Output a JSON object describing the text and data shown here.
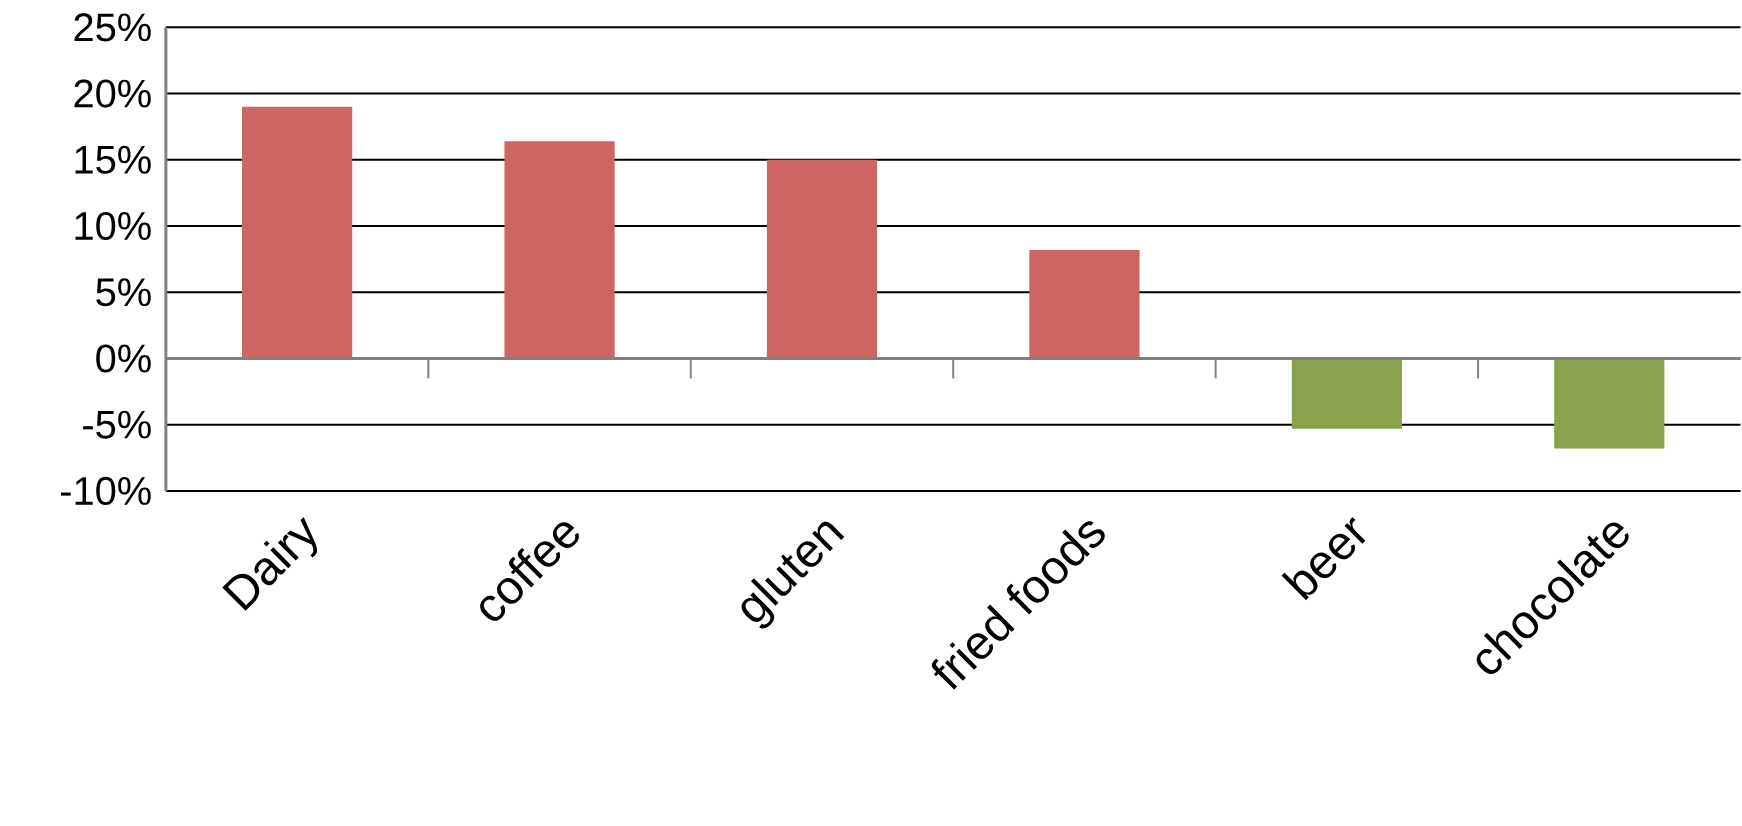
{
  "chart_data": {
    "type": "bar",
    "categories": [
      "Dairy",
      "coffee",
      "gluten",
      "fried foods",
      "beer",
      "chocolate"
    ],
    "values": [
      19,
      16.4,
      15,
      8.2,
      -5.3,
      -6.8
    ],
    "colors": [
      "#cd6660",
      "#cd6660",
      "#cd6660",
      "#cd6660",
      "#89a24b",
      "#89a24b"
    ],
    "ylim": [
      -10,
      25
    ],
    "yticks": [
      {
        "value": -10,
        "label": "-10%"
      },
      {
        "value": -5,
        "label": "-5%"
      },
      {
        "value": 0,
        "label": "0%"
      },
      {
        "value": 5,
        "label": "5%"
      },
      {
        "value": 10,
        "label": "10%"
      },
      {
        "value": 15,
        "label": "15%"
      },
      {
        "value": 20,
        "label": "20%"
      },
      {
        "value": 25,
        "label": "25%"
      }
    ],
    "grid": "y"
  }
}
